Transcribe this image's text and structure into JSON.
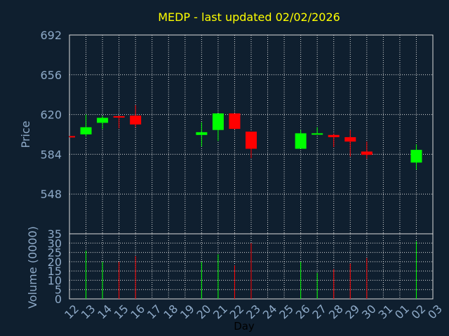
{
  "chart_data": {
    "type": "candlestick",
    "title": "MEDP - last updated 02/02/2026",
    "xlabel": "Day",
    "price": {
      "ylabel": "Price",
      "ylim": [
        512,
        692
      ],
      "yticks": [
        692,
        656,
        620,
        584,
        548
      ]
    },
    "volume": {
      "ylabel": "Volume (0000)",
      "ylim": [
        0,
        35
      ],
      "yticks": [
        35,
        30,
        25,
        20,
        15,
        10,
        5,
        0
      ]
    },
    "grid": true,
    "x_labels": [
      "12",
      "13",
      "14",
      "15",
      "16",
      "17",
      "18",
      "19",
      "20",
      "21",
      "22",
      "23",
      "24",
      "25",
      "26",
      "27",
      "28",
      "29",
      "30",
      "31",
      "01",
      "02",
      "03"
    ],
    "candles": [
      {
        "day": "12",
        "open": 600.5,
        "close": 599.5,
        "high": 600.5,
        "low": 599.5
      },
      {
        "day": "13",
        "open": 602,
        "close": 608.5,
        "high": 620,
        "low": 600,
        "volume": 26
      },
      {
        "day": "14",
        "open": 612.5,
        "close": 617,
        "high": 619,
        "low": 607,
        "volume": 20
      },
      {
        "day": "15",
        "open": 618.5,
        "close": 617.5,
        "high": 619,
        "low": 607.5,
        "volume": 20
      },
      {
        "day": "16",
        "open": 619,
        "close": 611,
        "high": 628.5,
        "low": 608.5,
        "volume": 23
      },
      {
        "day": "20",
        "open": 601.5,
        "close": 604,
        "high": 613,
        "low": 591,
        "volume": 20
      },
      {
        "day": "21",
        "open": 606,
        "close": 621,
        "high": 621,
        "low": 596,
        "volume": 24
      },
      {
        "day": "22",
        "open": 621,
        "close": 607,
        "high": 621,
        "low": 606.5,
        "volume": 18
      },
      {
        "day": "23",
        "open": 604.5,
        "close": 589,
        "high": 604.5,
        "low": 580.5,
        "volume": 30
      },
      {
        "day": "26",
        "open": 589,
        "close": 603,
        "high": 606,
        "low": 589,
        "volume": 20
      },
      {
        "day": "27",
        "open": 603,
        "close": 603,
        "high": 608.5,
        "low": 603,
        "volume": 14
      },
      {
        "day": "28",
        "open": 601.5,
        "close": 599.5,
        "high": 602.5,
        "low": 590.5,
        "volume": 16
      },
      {
        "day": "29",
        "open": 599.5,
        "close": 595.5,
        "high": 606,
        "low": 582,
        "volume": 19
      },
      {
        "day": "30",
        "open": 586.5,
        "close": 583.5,
        "high": 595.5,
        "low": 580,
        "volume": 22
      },
      {
        "day": "02",
        "open": 576.5,
        "close": 588,
        "high": 593,
        "low": 570,
        "volume": 31
      }
    ],
    "colors": {
      "background": "#0f1f2f",
      "up": "#00ff00",
      "down": "#ff0000",
      "text": "#8eaac8",
      "title": "#ffff00",
      "grid": "#dddddd"
    }
  }
}
